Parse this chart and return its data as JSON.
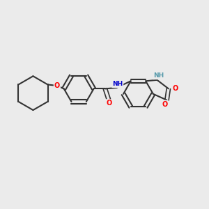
{
  "bg_color": "#ebebeb",
  "bond_color": "#333333",
  "atom_colors": {
    "O": "#ff0000",
    "N": "#0000cc",
    "H": "#5599aa",
    "C": "#333333"
  },
  "figsize": [
    3.0,
    3.0
  ],
  "dpi": 100
}
